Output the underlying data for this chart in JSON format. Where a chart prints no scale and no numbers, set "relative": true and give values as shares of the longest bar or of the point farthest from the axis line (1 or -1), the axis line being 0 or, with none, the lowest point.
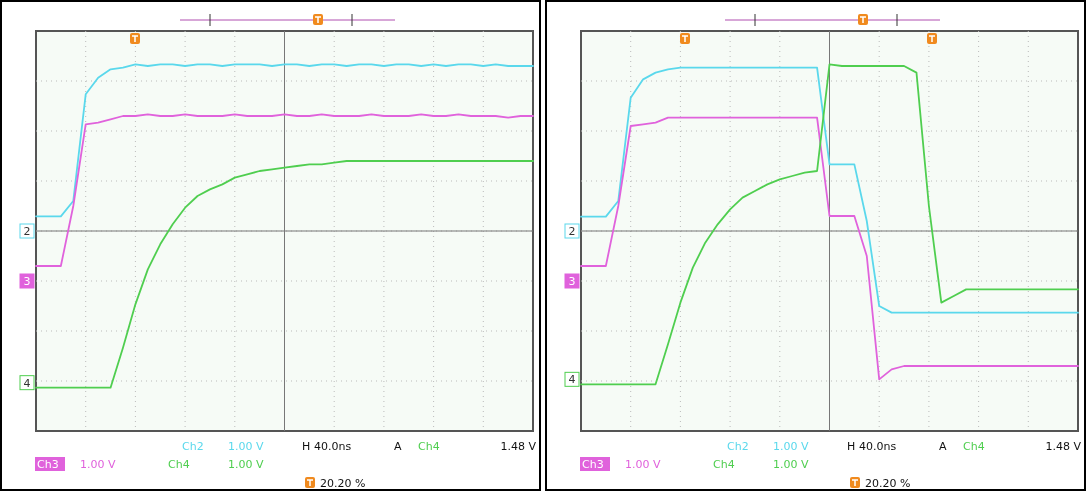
{
  "chart_data": [
    {
      "type": "line",
      "relative": true,
      "grid": true,
      "categories": [
        null,
        null,
        null,
        null,
        null,
        null,
        null,
        null,
        null,
        null,
        null,
        null,
        null,
        null,
        null,
        null,
        null,
        null,
        null,
        null,
        null,
        null,
        null,
        null,
        null,
        null,
        null,
        null,
        null,
        null,
        null,
        null,
        null,
        null,
        null,
        null,
        null,
        null,
        null,
        null,
        null
      ],
      "series": [
        {
          "color": "#5ad8ec",
          "values": [
            0.088,
            0.088,
            0.088,
            0.18,
            0.82,
            0.92,
            0.97,
            0.98,
            1,
            0.99,
            1,
            1,
            0.99,
            1,
            1,
            0.99,
            1,
            1,
            1,
            0.99,
            1,
            1,
            0.99,
            1,
            1,
            0.99,
            1,
            1,
            0.99,
            1,
            1,
            0.99,
            1,
            0.99,
            1,
            1,
            0.99,
            1,
            0.99,
            0.99,
            0.99
          ]
        },
        {
          "color": "#e062dc",
          "values": [
            -0.21,
            -0.21,
            -0.21,
            0.15,
            0.64,
            0.65,
            0.67,
            0.69,
            0.69,
            0.7,
            0.69,
            0.69,
            0.7,
            0.69,
            0.69,
            0.69,
            0.7,
            0.69,
            0.69,
            0.69,
            0.7,
            0.69,
            0.69,
            0.7,
            0.69,
            0.69,
            0.69,
            0.7,
            0.69,
            0.69,
            0.69,
            0.7,
            0.69,
            0.69,
            0.7,
            0.69,
            0.69,
            0.69,
            0.68,
            0.69,
            0.69
          ]
        },
        {
          "color": "#4fce4f",
          "values": [
            -0.94,
            -0.94,
            -0.94,
            -0.94,
            -0.94,
            -0.94,
            -0.94,
            -0.7,
            -0.44,
            -0.23,
            -0.08,
            0.04,
            0.14,
            0.21,
            0.25,
            0.28,
            0.32,
            0.34,
            0.36,
            0.37,
            0.38,
            0.39,
            0.4,
            0.4,
            0.41,
            0.42,
            0.42,
            0.42,
            0.42,
            0.42,
            0.42,
            0.42,
            0.42,
            0.42,
            0.42,
            0.42,
            0.42,
            0.42,
            0.42,
            0.42,
            0.42
          ]
        }
      ],
      "annotations": [
        "Ch2",
        "1.00 V",
        "H",
        "40.0ns",
        "A",
        "Ch4",
        "1.48 V",
        "Ch3",
        "1.00 V",
        "Ch4",
        "1.00 V",
        "20.20 %",
        {
          "text": "2",
          "y": 0
        },
        {
          "text": "3",
          "y": -0.3
        },
        {
          "text": "4",
          "y": -0.91
        }
      ]
    },
    {
      "type": "line",
      "relative": true,
      "grid": true,
      "categories": [
        null,
        null,
        null,
        null,
        null,
        null,
        null,
        null,
        null,
        null,
        null,
        null,
        null,
        null,
        null,
        null,
        null,
        null,
        null,
        null,
        null,
        null,
        null,
        null,
        null,
        null,
        null,
        null,
        null,
        null,
        null,
        null,
        null,
        null,
        null,
        null,
        null,
        null,
        null,
        null,
        null
      ],
      "series": [
        {
          "color": "#5ad8ec",
          "values": [
            0.086,
            0.086,
            0.086,
            0.18,
            0.8,
            0.91,
            0.95,
            0.97,
            0.98,
            0.98,
            0.98,
            0.98,
            0.98,
            0.98,
            0.98,
            0.98,
            0.98,
            0.98,
            0.98,
            0.98,
            0.4,
            0.4,
            0.4,
            0.06,
            -0.45,
            -0.49,
            -0.49,
            -0.49,
            -0.49,
            -0.49,
            -0.49,
            -0.49,
            -0.49,
            -0.49,
            -0.49,
            -0.49,
            -0.49,
            -0.49,
            -0.49,
            -0.49,
            -0.49
          ]
        },
        {
          "color": "#e062dc",
          "values": [
            -0.21,
            -0.21,
            -0.21,
            0.15,
            0.63,
            0.64,
            0.65,
            0.68,
            0.68,
            0.68,
            0.68,
            0.68,
            0.68,
            0.68,
            0.68,
            0.68,
            0.68,
            0.68,
            0.68,
            0.68,
            0.09,
            0.09,
            0.09,
            -0.15,
            -0.89,
            -0.83,
            -0.81,
            -0.81,
            -0.81,
            -0.81,
            -0.81,
            -0.81,
            -0.81,
            -0.81,
            -0.81,
            -0.81,
            -0.81,
            -0.81,
            -0.81,
            -0.81,
            -0.81
          ]
        },
        {
          "color": "#4fce4f",
          "values": [
            -0.92,
            -0.92,
            -0.92,
            -0.92,
            -0.92,
            -0.92,
            -0.92,
            -0.68,
            -0.43,
            -0.22,
            -0.07,
            0.04,
            0.13,
            0.2,
            0.24,
            0.28,
            0.31,
            0.33,
            0.35,
            0.36,
            1,
            0.99,
            0.99,
            0.99,
            0.99,
            0.99,
            0.99,
            0.95,
            0.15,
            -0.43,
            -0.39,
            -0.35,
            -0.35,
            -0.35,
            -0.35,
            -0.35,
            -0.35,
            -0.35,
            -0.35,
            -0.35,
            -0.35
          ]
        }
      ],
      "annotations": [
        "Ch2",
        "1.00 V",
        "H",
        "40.0ns",
        "A",
        "Ch4",
        "1.48 V",
        "Ch3",
        "1.00 V",
        "Ch4",
        "1.00 V",
        "20.20 %",
        {
          "text": "2",
          "y": 0
        },
        {
          "text": "3",
          "y": -0.3
        },
        {
          "text": "4",
          "y": -0.89
        }
      ]
    }
  ]
}
